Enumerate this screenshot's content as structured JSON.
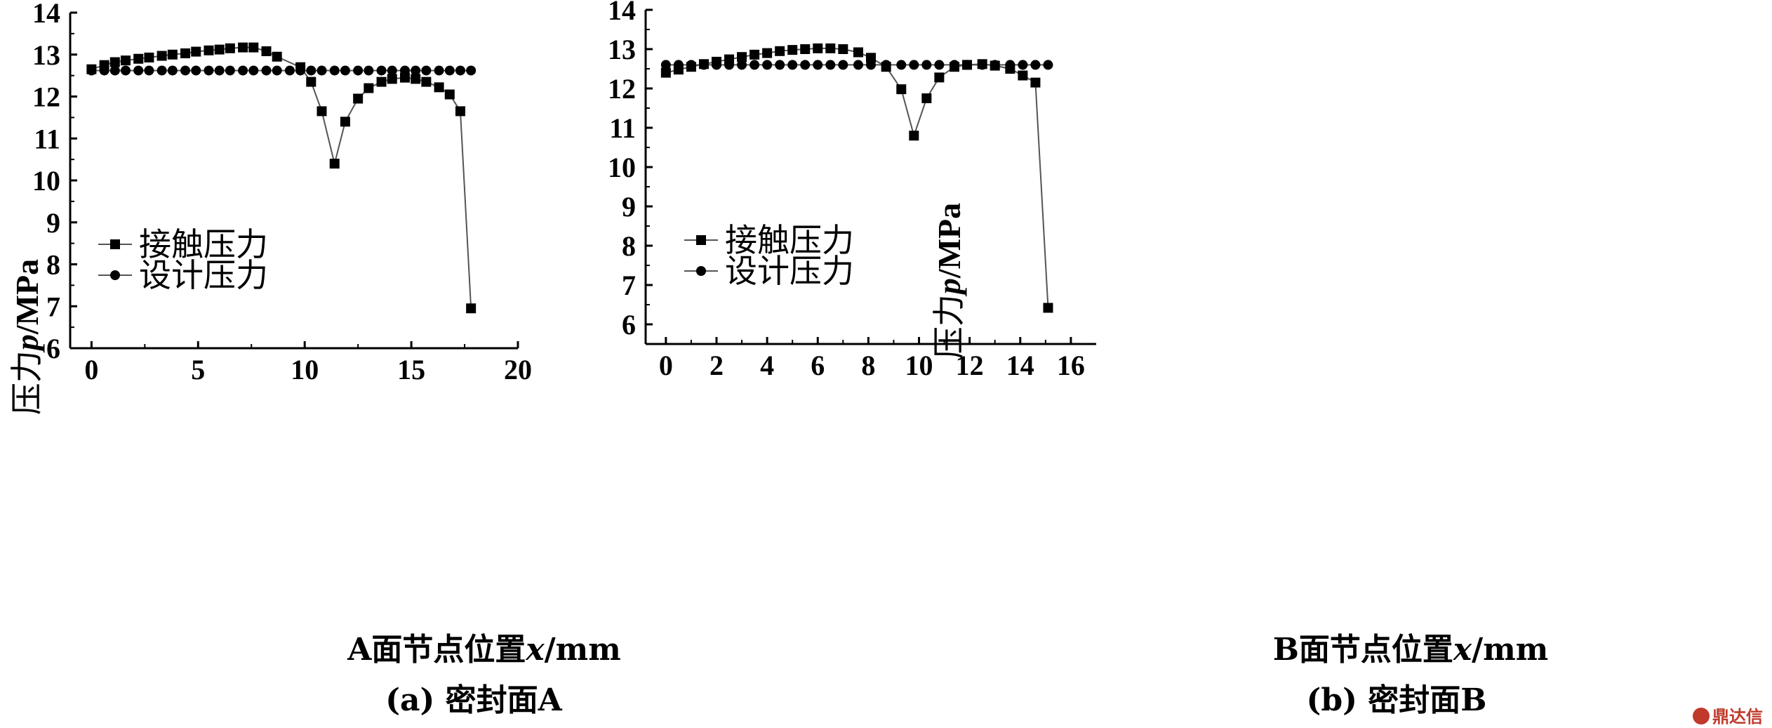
{
  "chart_data": [
    {
      "type": "line",
      "caption": "(a) 密封面A",
      "xlabel_prefix": "A面节点位置",
      "xlabel_var": "x",
      "xlabel_unit": "/mm",
      "ylabel_prefix": "压力",
      "ylabel_var": "p",
      "ylabel_unit": "/MPa",
      "xlim": [
        -1,
        20
      ],
      "ylim": [
        6,
        14
      ],
      "xticks": [
        0,
        5,
        10,
        15,
        20
      ],
      "yticks": [
        6,
        7,
        8,
        9,
        10,
        11,
        12,
        13,
        14
      ],
      "legend_position": "middle-left",
      "series": [
        {
          "name": "接触压力",
          "marker": "square",
          "points": [
            [
              0,
              12.65
            ],
            [
              0.6,
              12.75
            ],
            [
              1.1,
              12.82
            ],
            [
              1.6,
              12.86
            ],
            [
              2.2,
              12.9
            ],
            [
              2.7,
              12.93
            ],
            [
              3.3,
              12.97
            ],
            [
              3.8,
              13.0
            ],
            [
              4.4,
              13.03
            ],
            [
              4.9,
              13.07
            ],
            [
              5.5,
              13.1
            ],
            [
              6.0,
              13.12
            ],
            [
              6.5,
              13.15
            ],
            [
              7.1,
              13.17
            ],
            [
              7.6,
              13.17
            ],
            [
              8.2,
              13.08
            ],
            [
              8.7,
              12.95
            ],
            [
              9.8,
              12.7
            ],
            [
              10.3,
              12.35
            ],
            [
              10.8,
              11.65
            ],
            [
              11.4,
              10.4
            ],
            [
              11.9,
              11.4
            ],
            [
              12.5,
              11.95
            ],
            [
              13.0,
              12.2
            ],
            [
              13.6,
              12.35
            ],
            [
              14.1,
              12.42
            ],
            [
              14.7,
              12.45
            ],
            [
              15.2,
              12.42
            ],
            [
              15.7,
              12.35
            ],
            [
              16.3,
              12.22
            ],
            [
              16.8,
              12.05
            ],
            [
              17.3,
              11.65
            ],
            [
              17.8,
              6.95
            ]
          ]
        },
        {
          "name": "设计压力",
          "marker": "circle",
          "points": [
            [
              0,
              12.62
            ],
            [
              0.6,
              12.62
            ],
            [
              1.1,
              12.62
            ],
            [
              1.6,
              12.62
            ],
            [
              2.2,
              12.62
            ],
            [
              2.7,
              12.62
            ],
            [
              3.3,
              12.62
            ],
            [
              3.8,
              12.62
            ],
            [
              4.4,
              12.62
            ],
            [
              4.9,
              12.62
            ],
            [
              5.5,
              12.62
            ],
            [
              6.0,
              12.62
            ],
            [
              6.5,
              12.62
            ],
            [
              7.1,
              12.62
            ],
            [
              7.6,
              12.62
            ],
            [
              8.2,
              12.62
            ],
            [
              8.7,
              12.62
            ],
            [
              9.3,
              12.62
            ],
            [
              9.8,
              12.62
            ],
            [
              10.3,
              12.62
            ],
            [
              10.8,
              12.62
            ],
            [
              11.4,
              12.62
            ],
            [
              11.9,
              12.62
            ],
            [
              12.5,
              12.62
            ],
            [
              13.0,
              12.62
            ],
            [
              13.6,
              12.62
            ],
            [
              14.1,
              12.62
            ],
            [
              14.7,
              12.62
            ],
            [
              15.2,
              12.62
            ],
            [
              15.7,
              12.62
            ],
            [
              16.3,
              12.62
            ],
            [
              16.8,
              12.62
            ],
            [
              17.3,
              12.62
            ],
            [
              17.8,
              12.62
            ]
          ]
        }
      ]
    },
    {
      "type": "line",
      "caption": "(b) 密封面B",
      "xlabel_prefix": "B面节点位置",
      "xlabel_var": "x",
      "xlabel_unit": "/mm",
      "ylabel_prefix": "压力",
      "ylabel_var": "p",
      "ylabel_unit": "/MPa",
      "xlim": [
        -0.8,
        17
      ],
      "ylim": [
        5.5,
        14
      ],
      "xticks": [
        0,
        2,
        4,
        6,
        8,
        10,
        12,
        14,
        16
      ],
      "yticks": [
        6,
        7,
        8,
        9,
        10,
        11,
        12,
        13,
        14
      ],
      "legend_position": "middle-left",
      "series": [
        {
          "name": "接触压力",
          "marker": "square",
          "points": [
            [
              0,
              12.4
            ],
            [
              0.5,
              12.48
            ],
            [
              1.0,
              12.55
            ],
            [
              1.5,
              12.62
            ],
            [
              2.0,
              12.68
            ],
            [
              2.5,
              12.74
            ],
            [
              3.0,
              12.8
            ],
            [
              3.5,
              12.86
            ],
            [
              4.0,
              12.9
            ],
            [
              4.5,
              12.95
            ],
            [
              5.0,
              12.98
            ],
            [
              5.5,
              13.0
            ],
            [
              6.0,
              13.02
            ],
            [
              6.5,
              13.02
            ],
            [
              7.0,
              13.0
            ],
            [
              7.6,
              12.92
            ],
            [
              8.1,
              12.78
            ],
            [
              8.7,
              12.55
            ],
            [
              9.3,
              11.98
            ],
            [
              9.8,
              10.8
            ],
            [
              10.3,
              11.75
            ],
            [
              10.8,
              12.28
            ],
            [
              11.4,
              12.55
            ],
            [
              11.9,
              12.6
            ],
            [
              12.5,
              12.62
            ],
            [
              13.0,
              12.58
            ],
            [
              13.6,
              12.5
            ],
            [
              14.1,
              12.33
            ],
            [
              14.6,
              12.15
            ],
            [
              15.1,
              6.42
            ]
          ]
        },
        {
          "name": "设计压力",
          "marker": "circle",
          "points": [
            [
              0,
              12.6
            ],
            [
              0.5,
              12.6
            ],
            [
              1.0,
              12.6
            ],
            [
              1.5,
              12.6
            ],
            [
              2.0,
              12.6
            ],
            [
              2.5,
              12.6
            ],
            [
              3.0,
              12.6
            ],
            [
              3.5,
              12.6
            ],
            [
              4.0,
              12.6
            ],
            [
              4.5,
              12.6
            ],
            [
              5.0,
              12.6
            ],
            [
              5.5,
              12.6
            ],
            [
              6.0,
              12.6
            ],
            [
              6.5,
              12.6
            ],
            [
              7.0,
              12.6
            ],
            [
              7.6,
              12.6
            ],
            [
              8.1,
              12.6
            ],
            [
              8.7,
              12.6
            ],
            [
              9.3,
              12.6
            ],
            [
              9.8,
              12.6
            ],
            [
              10.3,
              12.6
            ],
            [
              10.8,
              12.6
            ],
            [
              11.4,
              12.6
            ],
            [
              11.9,
              12.6
            ],
            [
              12.5,
              12.6
            ],
            [
              13.0,
              12.6
            ],
            [
              13.6,
              12.6
            ],
            [
              14.1,
              12.6
            ],
            [
              14.6,
              12.6
            ],
            [
              15.1,
              12.6
            ]
          ]
        }
      ]
    }
  ],
  "watermark": {
    "text": "鼎达信",
    "color": "#c0392b"
  }
}
